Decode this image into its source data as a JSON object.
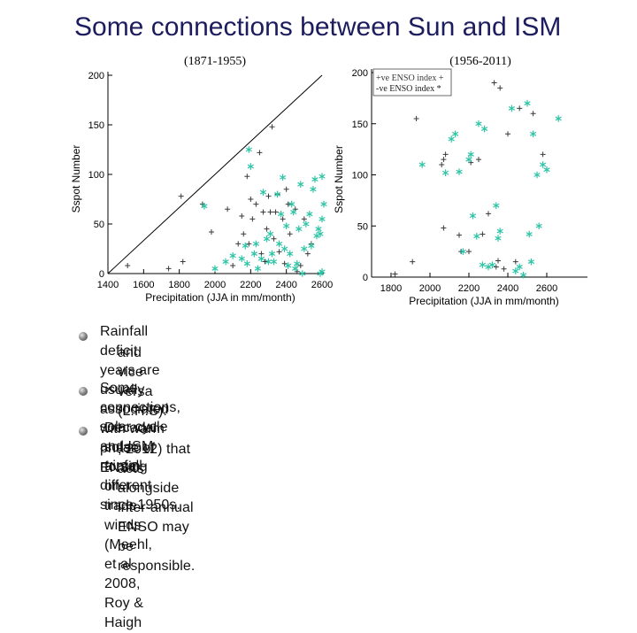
{
  "title": "Some connections between Sun and ISM",
  "colors": {
    "title": "#1c1c5e",
    "positive_enso": "#3a3a3a",
    "negative_enso": "#2ec4a6",
    "axis": "#000000"
  },
  "chart_data": [
    {
      "type": "scatter",
      "period_label": "(1871-1955)",
      "xlabel": "Precipitation (JJA in mm/month)",
      "ylabel": "Sspot Number",
      "xlim": [
        1400,
        2600
      ],
      "ylim": [
        0,
        200
      ],
      "xticks": [
        "1400",
        "1600",
        "1800",
        "2000",
        "2200",
        "2400",
        "2600"
      ],
      "yticks": [
        "0",
        "50",
        "100",
        "150",
        "200"
      ],
      "diagonal_line": [
        [
          1400,
          0
        ],
        [
          2600,
          200
        ]
      ],
      "series": [
        {
          "name": "+ve ENSO index",
          "marker": "+",
          "points": [
            [
              1510,
              8
            ],
            [
              1740,
              5
            ],
            [
              1810,
              78
            ],
            [
              1820,
              12
            ],
            [
              1930,
              70
            ],
            [
              1980,
              42
            ],
            [
              2070,
              65
            ],
            [
              2100,
              8
            ],
            [
              2130,
              30
            ],
            [
              2150,
              58
            ],
            [
              2160,
              40
            ],
            [
              2180,
              98
            ],
            [
              2190,
              30
            ],
            [
              2200,
              75
            ],
            [
              2210,
              55
            ],
            [
              2230,
              70
            ],
            [
              2250,
              122
            ],
            [
              2260,
              20
            ],
            [
              2270,
              62
            ],
            [
              2280,
              12
            ],
            [
              2290,
              45
            ],
            [
              2300,
              78
            ],
            [
              2310,
              62
            ],
            [
              2320,
              148
            ],
            [
              2330,
              35
            ],
            [
              2340,
              62
            ],
            [
              2350,
              80
            ],
            [
              2360,
              22
            ],
            [
              2380,
              55
            ],
            [
              2390,
              10
            ],
            [
              2400,
              85
            ],
            [
              2410,
              70
            ],
            [
              2420,
              40
            ],
            [
              2450,
              65
            ],
            [
              2460,
              2
            ],
            [
              2480,
              8
            ],
            [
              2500,
              55
            ],
            [
              2520,
              20
            ],
            [
              2540,
              30
            ]
          ]
        },
        {
          "name": "-ve ENSO index",
          "marker": "*",
          "points": [
            [
              1940,
              68
            ],
            [
              2000,
              5
            ],
            [
              2060,
              12
            ],
            [
              2100,
              18
            ],
            [
              2150,
              15
            ],
            [
              2170,
              28
            ],
            [
              2180,
              10
            ],
            [
              2190,
              125
            ],
            [
              2200,
              108
            ],
            [
              2220,
              20
            ],
            [
              2230,
              30
            ],
            [
              2240,
              5
            ],
            [
              2260,
              15
            ],
            [
              2270,
              82
            ],
            [
              2290,
              35
            ],
            [
              2300,
              12
            ],
            [
              2310,
              40
            ],
            [
              2320,
              20
            ],
            [
              2330,
              12
            ],
            [
              2350,
              80
            ],
            [
              2360,
              30
            ],
            [
              2370,
              60
            ],
            [
              2380,
              97
            ],
            [
              2390,
              25
            ],
            [
              2400,
              48
            ],
            [
              2410,
              8
            ],
            [
              2420,
              20
            ],
            [
              2430,
              70
            ],
            [
              2440,
              62
            ],
            [
              2450,
              5
            ],
            [
              2460,
              10
            ],
            [
              2470,
              45
            ],
            [
              2480,
              90
            ],
            [
              2490,
              0
            ],
            [
              2500,
              25
            ],
            [
              2510,
              50
            ],
            [
              2530,
              60
            ],
            [
              2540,
              28
            ],
            [
              2550,
              85
            ],
            [
              2560,
              95
            ],
            [
              2570,
              38
            ],
            [
              2580,
              45
            ],
            [
              2590,
              0
            ],
            [
              2600,
              2
            ],
            [
              2600,
              55
            ],
            [
              2610,
              70
            ],
            [
              2600,
              98
            ],
            [
              2590,
              40
            ]
          ]
        }
      ]
    },
    {
      "type": "scatter",
      "period_label": "(1956-2011)",
      "xlabel": "Precipitation (JJA in mm/month)",
      "ylabel": "Sspot Number",
      "xlim": [
        1700,
        2800
      ],
      "ylim": [
        0,
        200
      ],
      "xticks": [
        "1800",
        "2000",
        "2200",
        "2400",
        "2600"
      ],
      "yticks": [
        "0",
        "50",
        "100",
        "150",
        "200"
      ],
      "legend": [
        {
          "label": "+ve ENSO index",
          "marker": "+"
        },
        {
          "label": "-ve ENSO index",
          "marker": "*"
        }
      ],
      "series": [
        {
          "name": "+ve ENSO index",
          "marker": "+",
          "points": [
            [
              1820,
              3
            ],
            [
              1910,
              15
            ],
            [
              1930,
              155
            ],
            [
              2060,
              110
            ],
            [
              2070,
              48
            ],
            [
              2070,
              115
            ],
            [
              2080,
              120
            ],
            [
              2150,
              41
            ],
            [
              2160,
              25
            ],
            [
              2200,
              25
            ],
            [
              2210,
              112
            ],
            [
              2250,
              115
            ],
            [
              2270,
              42
            ],
            [
              2300,
              62
            ],
            [
              2330,
              190
            ],
            [
              2340,
              10
            ],
            [
              2350,
              16
            ],
            [
              2360,
              185
            ],
            [
              2380,
              8
            ],
            [
              2400,
              140
            ],
            [
              2440,
              15
            ],
            [
              2460,
              165
            ],
            [
              2530,
              160
            ],
            [
              2580,
              120
            ]
          ]
        },
        {
          "name": "-ve ENSO index",
          "marker": "*",
          "points": [
            [
              1960,
              110
            ],
            [
              2080,
              102
            ],
            [
              2110,
              135
            ],
            [
              2130,
              140
            ],
            [
              2150,
              103
            ],
            [
              2170,
              25
            ],
            [
              2200,
              115
            ],
            [
              2210,
              120
            ],
            [
              2220,
              60
            ],
            [
              2240,
              40
            ],
            [
              2250,
              150
            ],
            [
              2270,
              12
            ],
            [
              2280,
              145
            ],
            [
              2300,
              10
            ],
            [
              2320,
              12
            ],
            [
              2340,
              70
            ],
            [
              2350,
              38
            ],
            [
              2360,
              45
            ],
            [
              2420,
              165
            ],
            [
              2440,
              6
            ],
            [
              2460,
              10
            ],
            [
              2480,
              2
            ],
            [
              2500,
              170
            ],
            [
              2510,
              42
            ],
            [
              2520,
              15
            ],
            [
              2530,
              140
            ],
            [
              2550,
              100
            ],
            [
              2560,
              50
            ],
            [
              2580,
              110
            ],
            [
              2600,
              105
            ],
            [
              2660,
              155
            ]
          ]
        }
      ]
    }
  ],
  "bullets": [
    {
      "line1": "Rainfall deficit years are usually associated with warm phase of ENSO",
      "line2": "and vice versa (L.H.S)."
    },
    {
      "line1": "Some connections,  solar cycle and ISM rainfall- different since 1950s.",
      "line2": ""
    },
    {
      "line1": "Decadal solar forcing on trade winds (Meehl, et al 2008, Roy & Haigh",
      "line2": ", 2012)  that acts alongside inter-annual ENSO may be  responsible."
    }
  ]
}
